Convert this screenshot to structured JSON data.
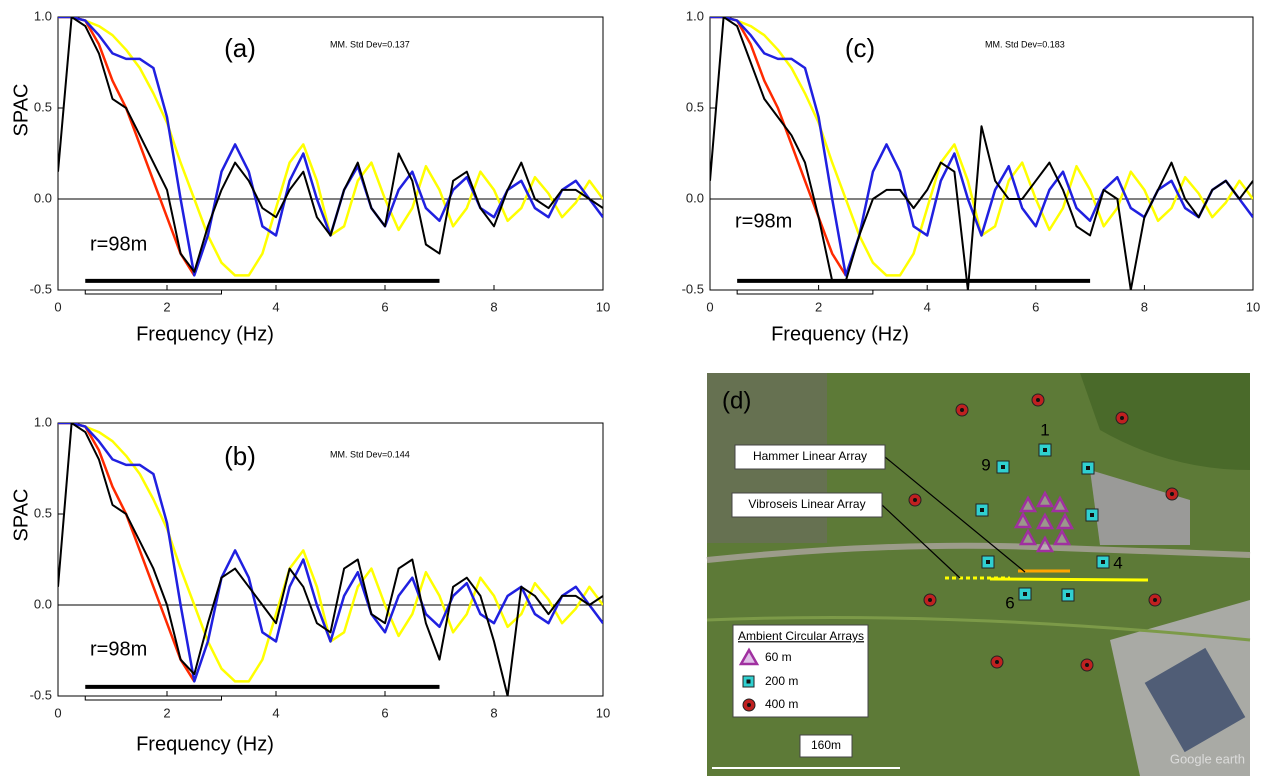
{
  "chart_data": [
    {
      "type": "line",
      "panel_label": "(a)",
      "annotation": "MM.  Std Dev=0.137",
      "radius_label": "r=98m",
      "xlabel": "Frequency (Hz)",
      "ylabel": "SPAC",
      "xlim": [
        0,
        10
      ],
      "xticks": [
        0,
        2,
        4,
        6,
        8,
        10
      ],
      "ylim": [
        -0.5,
        1.0
      ],
      "yticks": [
        -0.5,
        {
          "value": 0,
          "label": "0.0"
        },
        0.5,
        {
          "value": 1,
          "label": "1.0"
        }
      ],
      "x": [
        0,
        0.25,
        0.5,
        0.75,
        1,
        1.25,
        1.5,
        1.75,
        2,
        2.25,
        2.5,
        2.75,
        3,
        3.25,
        3.5,
        3.75,
        4,
        4.25,
        4.5,
        4.75,
        5,
        5.25,
        5.5,
        5.75,
        6,
        6.25,
        6.5,
        6.75,
        7,
        7.25,
        7.5,
        7.75,
        8,
        8.25,
        8.5,
        8.75,
        9,
        9.25,
        9.5,
        9.75,
        10
      ],
      "series": [
        {
          "color": "#ffff00",
          "values": [
            1,
            1,
            0.98,
            0.95,
            0.9,
            0.82,
            0.72,
            0.58,
            0.42,
            0.2,
            0,
            -0.2,
            -0.35,
            -0.42,
            -0.42,
            -0.3,
            -0.05,
            0.2,
            0.3,
            0.1,
            -0.2,
            -0.15,
            0.1,
            0.2,
            0,
            -0.17,
            -0.05,
            0.18,
            0.05,
            -0.15,
            -0.05,
            0.15,
            0.05,
            -0.12,
            -0.05,
            0.12,
            0.03,
            -0.1,
            -0.02,
            0.1,
            0
          ]
        },
        {
          "color": "#ff2a00",
          "values": [
            1,
            1,
            0.98,
            0.85,
            0.65,
            0.5,
            0.3,
            0.1,
            -0.1,
            -0.3,
            -0.42,
            null,
            null,
            null,
            null,
            null,
            null,
            null,
            null,
            null,
            null,
            null,
            null,
            null,
            null,
            null,
            null,
            null,
            null,
            null,
            null,
            null,
            null,
            null,
            null,
            null,
            null,
            null,
            null,
            null,
            null
          ]
        },
        {
          "color": "#2020e0",
          "values": [
            1,
            1,
            0.98,
            0.9,
            0.8,
            0.77,
            0.77,
            0.72,
            0.45,
            0,
            -0.42,
            -0.2,
            0.15,
            0.3,
            0.15,
            -0.15,
            -0.2,
            0.1,
            0.25,
            0,
            -0.2,
            0.05,
            0.18,
            -0.05,
            -0.15,
            0.05,
            0.15,
            -0.05,
            -0.12,
            0.05,
            0.12,
            -0.05,
            -0.1,
            0.05,
            0.1,
            -0.05,
            -0.1,
            0.05,
            0.1,
            0,
            -0.1
          ]
        },
        {
          "color": "#000000",
          "values": [
            0.15,
            1,
            0.95,
            0.8,
            0.55,
            0.5,
            0.35,
            0.2,
            0.05,
            -0.3,
            -0.4,
            -0.15,
            0.05,
            0.2,
            0.1,
            -0.05,
            -0.1,
            0.05,
            0.15,
            -0.1,
            -0.2,
            0.05,
            0.2,
            -0.05,
            -0.15,
            0.25,
            0.1,
            -0.25,
            -0.3,
            0.1,
            0.15,
            -0.05,
            -0.15,
            0.05,
            0.2,
            0,
            -0.05,
            0.05,
            0.05,
            0,
            -0.05
          ]
        }
      ],
      "bands": [
        {
          "x": [
            0.5,
            7
          ],
          "y": -0.45
        },
        {
          "x": [
            0.5,
            3
          ],
          "y": -0.5
        }
      ]
    },
    {
      "type": "line",
      "panel_label": "(b)",
      "annotation": "MM.  Std Dev=0.144",
      "radius_label": "r=98m",
      "xlabel": "Frequency (Hz)",
      "ylabel": "SPAC",
      "xlim": [
        0,
        10
      ],
      "xticks": [
        0,
        2,
        4,
        6,
        8,
        10
      ],
      "ylim": [
        -0.5,
        1.0
      ],
      "yticks": [
        -0.5,
        {
          "value": 0,
          "label": "0.0"
        },
        0.5,
        {
          "value": 1,
          "label": "1.0"
        }
      ],
      "x": [
        0,
        0.25,
        0.5,
        0.75,
        1,
        1.25,
        1.5,
        1.75,
        2,
        2.25,
        2.5,
        2.75,
        3,
        3.25,
        3.5,
        3.75,
        4,
        4.25,
        4.5,
        4.75,
        5,
        5.25,
        5.5,
        5.75,
        6,
        6.25,
        6.5,
        6.75,
        7,
        7.25,
        7.5,
        7.75,
        8,
        8.25,
        8.5,
        8.75,
        9,
        9.25,
        9.5,
        9.75,
        10
      ],
      "series": [
        {
          "color": "#ffff00",
          "values": [
            1,
            1,
            0.98,
            0.95,
            0.9,
            0.82,
            0.72,
            0.58,
            0.42,
            0.2,
            0,
            -0.2,
            -0.35,
            -0.42,
            -0.42,
            -0.3,
            -0.05,
            0.2,
            0.3,
            0.1,
            -0.2,
            -0.15,
            0.1,
            0.2,
            0,
            -0.17,
            -0.05,
            0.18,
            0.05,
            -0.15,
            -0.05,
            0.15,
            0.05,
            -0.12,
            -0.05,
            0.12,
            0.03,
            -0.1,
            -0.02,
            0.1,
            0
          ]
        },
        {
          "color": "#ff2a00",
          "values": [
            1,
            1,
            0.98,
            0.85,
            0.65,
            0.5,
            0.3,
            0.1,
            -0.1,
            -0.3,
            -0.42,
            null,
            null,
            null,
            null,
            null,
            null,
            null,
            null,
            null,
            null,
            null,
            null,
            null,
            null,
            null,
            null,
            null,
            null,
            null,
            null,
            null,
            null,
            null,
            null,
            null,
            null,
            null,
            null,
            null,
            null
          ]
        },
        {
          "color": "#2020e0",
          "values": [
            1,
            1,
            0.98,
            0.9,
            0.8,
            0.77,
            0.77,
            0.72,
            0.45,
            0,
            -0.42,
            -0.2,
            0.15,
            0.3,
            0.15,
            -0.15,
            -0.2,
            0.1,
            0.25,
            0,
            -0.2,
            0.05,
            0.18,
            -0.05,
            -0.15,
            0.05,
            0.15,
            -0.05,
            -0.12,
            0.05,
            0.12,
            -0.05,
            -0.1,
            0.05,
            0.1,
            -0.05,
            -0.1,
            0.05,
            0.1,
            0,
            -0.1
          ]
        },
        {
          "color": "#000000",
          "values": [
            0.1,
            1,
            0.95,
            0.8,
            0.55,
            0.5,
            0.35,
            0.2,
            0,
            -0.3,
            -0.38,
            -0.1,
            0.15,
            0.2,
            0.1,
            0,
            -0.1,
            0.2,
            0.1,
            -0.1,
            -0.15,
            0.2,
            0.25,
            -0.05,
            -0.1,
            0.2,
            0.25,
            -0.1,
            -0.3,
            0.1,
            0.15,
            0.05,
            -0.2,
            -0.5,
            0.1,
            0.05,
            -0.05,
            0.05,
            0.05,
            0,
            0.05
          ]
        }
      ],
      "bands": [
        {
          "x": [
            0.5,
            7
          ],
          "y": -0.45
        },
        {
          "x": [
            0.5,
            3
          ],
          "y": -0.5
        }
      ]
    },
    {
      "type": "line",
      "panel_label": "(c)",
      "annotation": "MM.  Std Dev=0.183",
      "radius_label": "r=98m",
      "xlabel": "Frequency (Hz)",
      "xlim": [
        0,
        10
      ],
      "xticks": [
        0,
        2,
        4,
        6,
        8,
        10
      ],
      "ylim": [
        -0.5,
        1.0
      ],
      "yticks": [
        -0.5,
        {
          "value": 0,
          "label": "0.0"
        },
        0.5,
        {
          "value": 1,
          "label": "1.0"
        }
      ],
      "x": [
        0,
        0.25,
        0.5,
        0.75,
        1,
        1.25,
        1.5,
        1.75,
        2,
        2.25,
        2.5,
        2.75,
        3,
        3.25,
        3.5,
        3.75,
        4,
        4.25,
        4.5,
        4.75,
        5,
        5.25,
        5.5,
        5.75,
        6,
        6.25,
        6.5,
        6.75,
        7,
        7.25,
        7.5,
        7.75,
        8,
        8.25,
        8.5,
        8.75,
        9,
        9.25,
        9.5,
        9.75,
        10
      ],
      "series": [
        {
          "color": "#ffff00",
          "values": [
            1,
            1,
            0.98,
            0.95,
            0.9,
            0.82,
            0.72,
            0.58,
            0.42,
            0.2,
            0,
            -0.2,
            -0.35,
            -0.42,
            -0.42,
            -0.3,
            -0.05,
            0.2,
            0.3,
            0.1,
            -0.2,
            -0.15,
            0.1,
            0.2,
            0,
            -0.17,
            -0.05,
            0.18,
            0.05,
            -0.15,
            -0.05,
            0.15,
            0.05,
            -0.12,
            -0.05,
            0.12,
            0.03,
            -0.1,
            -0.02,
            0.1,
            0
          ]
        },
        {
          "color": "#ff2a00",
          "values": [
            1,
            1,
            0.98,
            0.85,
            0.65,
            0.5,
            0.3,
            0.1,
            -0.1,
            -0.3,
            -0.42,
            null,
            null,
            null,
            null,
            null,
            null,
            null,
            null,
            null,
            null,
            null,
            null,
            null,
            null,
            null,
            null,
            null,
            null,
            null,
            null,
            null,
            null,
            null,
            null,
            null,
            null,
            null,
            null,
            null,
            null
          ]
        },
        {
          "color": "#2020e0",
          "values": [
            1,
            1,
            0.98,
            0.9,
            0.8,
            0.77,
            0.77,
            0.72,
            0.45,
            0,
            -0.42,
            -0.2,
            0.15,
            0.3,
            0.15,
            -0.15,
            -0.2,
            0.1,
            0.25,
            0,
            -0.2,
            0.05,
            0.18,
            -0.05,
            -0.15,
            0.05,
            0.15,
            -0.05,
            -0.12,
            0.05,
            0.12,
            -0.05,
            -0.1,
            0.05,
            0.1,
            -0.05,
            -0.1,
            0.05,
            0.1,
            0,
            -0.1
          ]
        },
        {
          "color": "#000000",
          "values": [
            0.1,
            1,
            0.95,
            0.75,
            0.55,
            0.45,
            0.35,
            0.2,
            -0.1,
            -0.45,
            -0.45,
            -0.2,
            0,
            0.05,
            0.05,
            -0.05,
            0.05,
            0.2,
            0.15,
            -0.5,
            0.4,
            0.1,
            0,
            0,
            0.1,
            0.2,
            0.05,
            -0.15,
            -0.2,
            0.05,
            0,
            -0.5,
            -0.1,
            0.05,
            0.2,
            0,
            -0.1,
            0.05,
            0.1,
            0,
            0.1
          ]
        }
      ],
      "bands": [
        {
          "x": [
            0.5,
            7
          ],
          "y": -0.45
        },
        {
          "x": [
            0.5,
            3
          ],
          "y": -0.5
        }
      ]
    }
  ],
  "map": {
    "panel_label": "(d)",
    "callouts": [
      "Hammer Linear Array",
      "Vibroseis Linear Array"
    ],
    "legend": {
      "title": "Ambient Circular Arrays",
      "items": [
        "60 m",
        "200 m",
        "400 m"
      ]
    },
    "point_labels": [
      "1",
      "9",
      "4",
      "6"
    ],
    "scale": "160m",
    "watermark": "Google earth"
  }
}
